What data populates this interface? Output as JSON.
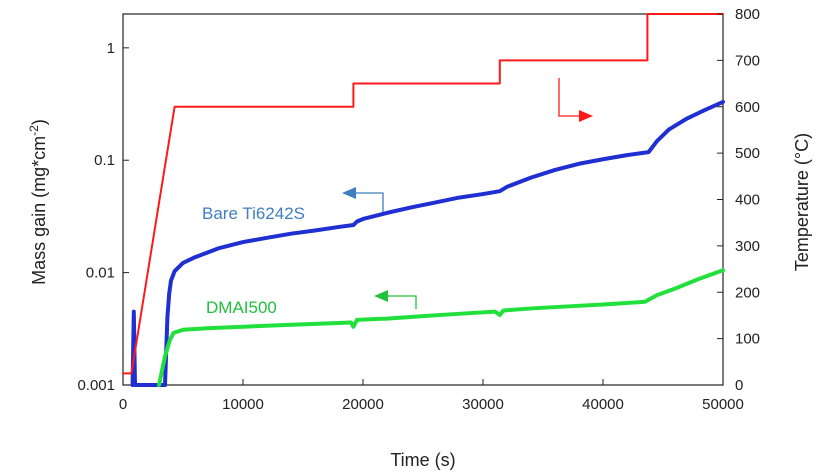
{
  "chart_data": {
    "type": "line",
    "xlabel": "Time (s)",
    "ylabel_left": {
      "prefix": "Mass gain (mg*cm",
      "superscript": "-2",
      "suffix": ")"
    },
    "ylabel_right": "Temperature (°C)",
    "x_ticks": [
      "0",
      "10000",
      "20000",
      "30000",
      "40000",
      "50000"
    ],
    "y_left_ticks": [
      "0.001",
      "0.01",
      "0.1",
      "1"
    ],
    "y_right_ticks": [
      "0",
      "100",
      "200",
      "300",
      "400",
      "500",
      "600",
      "700",
      "800"
    ],
    "xlim": [
      0,
      50000
    ],
    "ylim_left": [
      0.001,
      2.0
    ],
    "ylim_left_scale": "log",
    "ylim_right": [
      0,
      800
    ],
    "grid": false,
    "series": [
      {
        "name": "Bare Ti6242S",
        "axis": "left",
        "color": "#1f2fd1",
        "label_color": "#3f7fc0",
        "arrow": "left",
        "points": [
          [
            800,
            0.001
          ],
          [
            900,
            0.0045
          ],
          [
            1000,
            0.001
          ],
          [
            3500,
            0.001
          ],
          [
            3700,
            0.004
          ],
          [
            3850,
            0.0065
          ],
          [
            4000,
            0.0085
          ],
          [
            4300,
            0.0103
          ],
          [
            5000,
            0.0122
          ],
          [
            6000,
            0.0137
          ],
          [
            8000,
            0.0165
          ],
          [
            10000,
            0.0187
          ],
          [
            12000,
            0.0204
          ],
          [
            14000,
            0.0222
          ],
          [
            16000,
            0.0237
          ],
          [
            18000,
            0.0255
          ],
          [
            19200,
            0.0265
          ],
          [
            19500,
            0.0285
          ],
          [
            20000,
            0.03
          ],
          [
            22000,
            0.034
          ],
          [
            24000,
            0.038
          ],
          [
            26000,
            0.042
          ],
          [
            28000,
            0.0465
          ],
          [
            30000,
            0.05
          ],
          [
            31400,
            0.053
          ],
          [
            32000,
            0.058
          ],
          [
            34000,
            0.07
          ],
          [
            36000,
            0.082
          ],
          [
            38000,
            0.093
          ],
          [
            40000,
            0.102
          ],
          [
            42000,
            0.111
          ],
          [
            43800,
            0.118
          ],
          [
            44500,
            0.148
          ],
          [
            45500,
            0.188
          ],
          [
            47000,
            0.235
          ],
          [
            48500,
            0.28
          ],
          [
            50000,
            0.33
          ]
        ]
      },
      {
        "name": "DMAI500",
        "axis": "left",
        "color": "#22e03c",
        "label_color": "#22c03c",
        "arrow": "left",
        "points": [
          [
            3000,
            0.001
          ],
          [
            3500,
            0.0018
          ],
          [
            3900,
            0.0025
          ],
          [
            4200,
            0.0029
          ],
          [
            5000,
            0.0031
          ],
          [
            7000,
            0.0032
          ],
          [
            10000,
            0.0033
          ],
          [
            13000,
            0.0034
          ],
          [
            16000,
            0.0035
          ],
          [
            19000,
            0.0036
          ],
          [
            19200,
            0.0033
          ],
          [
            19500,
            0.0038
          ],
          [
            22000,
            0.0039
          ],
          [
            25000,
            0.0041
          ],
          [
            28000,
            0.0043
          ],
          [
            31000,
            0.0045
          ],
          [
            31400,
            0.0042
          ],
          [
            31700,
            0.0046
          ],
          [
            34000,
            0.0048
          ],
          [
            37000,
            0.005
          ],
          [
            40000,
            0.0052
          ],
          [
            43500,
            0.0055
          ],
          [
            44500,
            0.0063
          ],
          [
            46000,
            0.0072
          ],
          [
            48000,
            0.0088
          ],
          [
            50000,
            0.0105
          ]
        ]
      },
      {
        "name": "",
        "axis": "right",
        "color": "#ff1a1a",
        "arrow": "right",
        "points": [
          [
            0,
            25
          ],
          [
            700,
            25
          ],
          [
            4300,
            600
          ],
          [
            19200,
            600
          ],
          [
            19200,
            650
          ],
          [
            31400,
            650
          ],
          [
            31400,
            700
          ],
          [
            43700,
            700
          ],
          [
            43700,
            800
          ],
          [
            50000,
            800
          ]
        ]
      }
    ]
  }
}
